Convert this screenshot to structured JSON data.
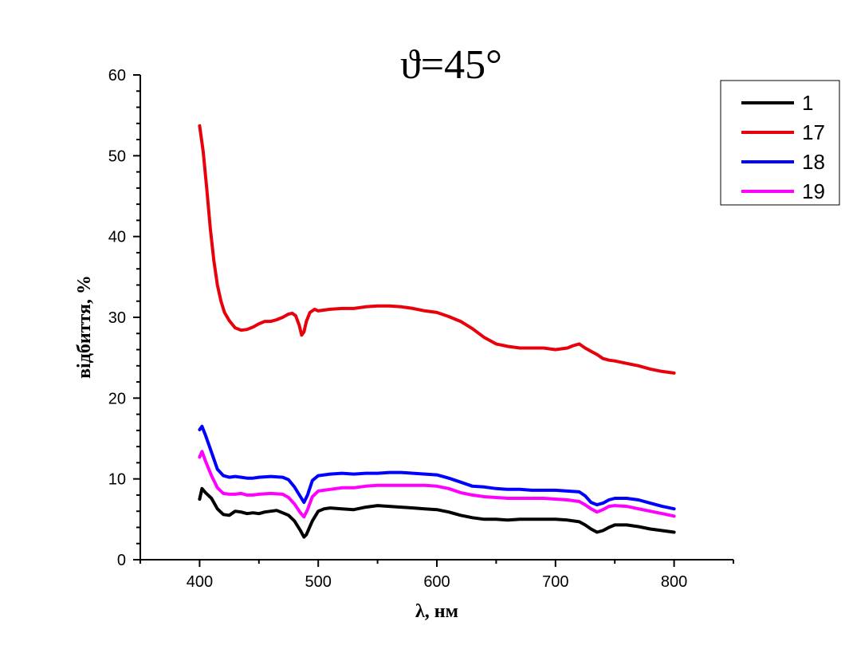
{
  "chart_data": {
    "type": "line",
    "title": "ϑ=45°",
    "xlabel": "λ, нм",
    "ylabel": "відбиття, %",
    "xlim": [
      350,
      850
    ],
    "ylim": [
      0,
      60
    ],
    "x_ticks": [
      "400",
      "500",
      "600",
      "700",
      "800"
    ],
    "y_ticks": [
      "0",
      "10",
      "20",
      "30",
      "40",
      "50",
      "60"
    ],
    "grid": false,
    "legend_position": "top-right",
    "series": [
      {
        "name": "1",
        "color": "#000000",
        "points": [
          [
            400,
            7.5
          ],
          [
            402,
            8.8
          ],
          [
            405,
            8.3
          ],
          [
            410,
            7.6
          ],
          [
            415,
            6.3
          ],
          [
            420,
            5.6
          ],
          [
            425,
            5.5
          ],
          [
            430,
            6.0
          ],
          [
            435,
            5.9
          ],
          [
            440,
            5.7
          ],
          [
            445,
            5.8
          ],
          [
            450,
            5.7
          ],
          [
            455,
            5.9
          ],
          [
            460,
            6.0
          ],
          [
            465,
            6.1
          ],
          [
            470,
            5.8
          ],
          [
            475,
            5.5
          ],
          [
            480,
            4.8
          ],
          [
            485,
            3.6
          ],
          [
            488,
            2.8
          ],
          [
            490,
            3.1
          ],
          [
            495,
            4.8
          ],
          [
            500,
            6.0
          ],
          [
            505,
            6.3
          ],
          [
            510,
            6.4
          ],
          [
            520,
            6.3
          ],
          [
            530,
            6.2
          ],
          [
            540,
            6.5
          ],
          [
            550,
            6.7
          ],
          [
            560,
            6.6
          ],
          [
            570,
            6.5
          ],
          [
            580,
            6.4
          ],
          [
            590,
            6.3
          ],
          [
            600,
            6.2
          ],
          [
            610,
            5.9
          ],
          [
            620,
            5.5
          ],
          [
            630,
            5.2
          ],
          [
            640,
            5.0
          ],
          [
            650,
            5.0
          ],
          [
            660,
            4.9
          ],
          [
            670,
            5.0
          ],
          [
            680,
            5.0
          ],
          [
            690,
            5.0
          ],
          [
            700,
            5.0
          ],
          [
            710,
            4.9
          ],
          [
            720,
            4.7
          ],
          [
            725,
            4.3
          ],
          [
            730,
            3.8
          ],
          [
            735,
            3.4
          ],
          [
            740,
            3.6
          ],
          [
            745,
            4.0
          ],
          [
            750,
            4.3
          ],
          [
            760,
            4.3
          ],
          [
            770,
            4.1
          ],
          [
            780,
            3.8
          ],
          [
            790,
            3.6
          ],
          [
            800,
            3.4
          ]
        ]
      },
      {
        "name": "17",
        "color": "#e8000b",
        "points": [
          [
            400,
            53.7
          ],
          [
            403,
            50.5
          ],
          [
            406,
            46.0
          ],
          [
            409,
            41.0
          ],
          [
            412,
            37.0
          ],
          [
            415,
            34.0
          ],
          [
            418,
            32.0
          ],
          [
            421,
            30.6
          ],
          [
            425,
            29.6
          ],
          [
            430,
            28.7
          ],
          [
            435,
            28.4
          ],
          [
            440,
            28.5
          ],
          [
            445,
            28.8
          ],
          [
            450,
            29.2
          ],
          [
            455,
            29.5
          ],
          [
            460,
            29.5
          ],
          [
            465,
            29.7
          ],
          [
            470,
            30.0
          ],
          [
            475,
            30.4
          ],
          [
            478,
            30.5
          ],
          [
            481,
            30.2
          ],
          [
            484,
            29.0
          ],
          [
            486,
            27.8
          ],
          [
            488,
            28.2
          ],
          [
            490,
            29.5
          ],
          [
            493,
            30.6
          ],
          [
            497,
            31.0
          ],
          [
            500,
            30.8
          ],
          [
            510,
            31.0
          ],
          [
            520,
            31.1
          ],
          [
            530,
            31.1
          ],
          [
            540,
            31.3
          ],
          [
            550,
            31.4
          ],
          [
            560,
            31.4
          ],
          [
            570,
            31.3
          ],
          [
            580,
            31.1
          ],
          [
            590,
            30.8
          ],
          [
            600,
            30.6
          ],
          [
            610,
            30.1
          ],
          [
            620,
            29.5
          ],
          [
            630,
            28.6
          ],
          [
            640,
            27.5
          ],
          [
            650,
            26.7
          ],
          [
            660,
            26.4
          ],
          [
            670,
            26.2
          ],
          [
            680,
            26.2
          ],
          [
            690,
            26.2
          ],
          [
            700,
            26.0
          ],
          [
            710,
            26.2
          ],
          [
            715,
            26.5
          ],
          [
            720,
            26.7
          ],
          [
            725,
            26.2
          ],
          [
            730,
            25.8
          ],
          [
            735,
            25.4
          ],
          [
            740,
            24.9
          ],
          [
            745,
            24.7
          ],
          [
            750,
            24.6
          ],
          [
            760,
            24.3
          ],
          [
            770,
            24.0
          ],
          [
            780,
            23.6
          ],
          [
            790,
            23.3
          ],
          [
            800,
            23.1
          ]
        ]
      },
      {
        "name": "18",
        "color": "#0000ff",
        "points": [
          [
            400,
            16.1
          ],
          [
            402,
            16.5
          ],
          [
            405,
            15.4
          ],
          [
            410,
            13.3
          ],
          [
            415,
            11.2
          ],
          [
            420,
            10.4
          ],
          [
            425,
            10.2
          ],
          [
            430,
            10.3
          ],
          [
            435,
            10.2
          ],
          [
            440,
            10.1
          ],
          [
            445,
            10.1
          ],
          [
            450,
            10.2
          ],
          [
            460,
            10.3
          ],
          [
            470,
            10.2
          ],
          [
            475,
            9.9
          ],
          [
            480,
            9.0
          ],
          [
            485,
            7.8
          ],
          [
            488,
            7.1
          ],
          [
            491,
            8.0
          ],
          [
            495,
            9.8
          ],
          [
            500,
            10.4
          ],
          [
            510,
            10.6
          ],
          [
            520,
            10.7
          ],
          [
            530,
            10.6
          ],
          [
            540,
            10.7
          ],
          [
            550,
            10.7
          ],
          [
            560,
            10.8
          ],
          [
            570,
            10.8
          ],
          [
            580,
            10.7
          ],
          [
            590,
            10.6
          ],
          [
            600,
            10.5
          ],
          [
            610,
            10.1
          ],
          [
            620,
            9.6
          ],
          [
            630,
            9.1
          ],
          [
            640,
            9.0
          ],
          [
            650,
            8.8
          ],
          [
            660,
            8.7
          ],
          [
            670,
            8.7
          ],
          [
            680,
            8.6
          ],
          [
            690,
            8.6
          ],
          [
            700,
            8.6
          ],
          [
            710,
            8.5
          ],
          [
            720,
            8.4
          ],
          [
            725,
            7.9
          ],
          [
            730,
            7.1
          ],
          [
            735,
            6.8
          ],
          [
            740,
            7.0
          ],
          [
            745,
            7.4
          ],
          [
            750,
            7.6
          ],
          [
            760,
            7.6
          ],
          [
            770,
            7.4
          ],
          [
            780,
            7.0
          ],
          [
            790,
            6.6
          ],
          [
            800,
            6.3
          ]
        ]
      },
      {
        "name": "19",
        "color": "#ff00ff",
        "points": [
          [
            400,
            12.7
          ],
          [
            402,
            13.4
          ],
          [
            405,
            12.2
          ],
          [
            410,
            10.4
          ],
          [
            415,
            8.9
          ],
          [
            420,
            8.2
          ],
          [
            425,
            8.1
          ],
          [
            430,
            8.1
          ],
          [
            435,
            8.2
          ],
          [
            440,
            8.0
          ],
          [
            445,
            8.0
          ],
          [
            450,
            8.1
          ],
          [
            460,
            8.2
          ],
          [
            470,
            8.1
          ],
          [
            475,
            7.7
          ],
          [
            480,
            6.9
          ],
          [
            485,
            5.8
          ],
          [
            488,
            5.3
          ],
          [
            491,
            6.2
          ],
          [
            495,
            7.8
          ],
          [
            500,
            8.5
          ],
          [
            510,
            8.7
          ],
          [
            520,
            8.9
          ],
          [
            530,
            8.9
          ],
          [
            540,
            9.1
          ],
          [
            550,
            9.2
          ],
          [
            560,
            9.2
          ],
          [
            570,
            9.2
          ],
          [
            580,
            9.2
          ],
          [
            590,
            9.2
          ],
          [
            600,
            9.1
          ],
          [
            610,
            8.8
          ],
          [
            620,
            8.3
          ],
          [
            630,
            8.0
          ],
          [
            640,
            7.8
          ],
          [
            650,
            7.7
          ],
          [
            660,
            7.6
          ],
          [
            670,
            7.6
          ],
          [
            680,
            7.6
          ],
          [
            690,
            7.6
          ],
          [
            700,
            7.5
          ],
          [
            710,
            7.4
          ],
          [
            720,
            7.2
          ],
          [
            725,
            6.8
          ],
          [
            730,
            6.3
          ],
          [
            735,
            5.9
          ],
          [
            740,
            6.2
          ],
          [
            745,
            6.6
          ],
          [
            750,
            6.7
          ],
          [
            760,
            6.6
          ],
          [
            770,
            6.3
          ],
          [
            780,
            6.0
          ],
          [
            790,
            5.7
          ],
          [
            800,
            5.4
          ]
        ]
      }
    ]
  }
}
